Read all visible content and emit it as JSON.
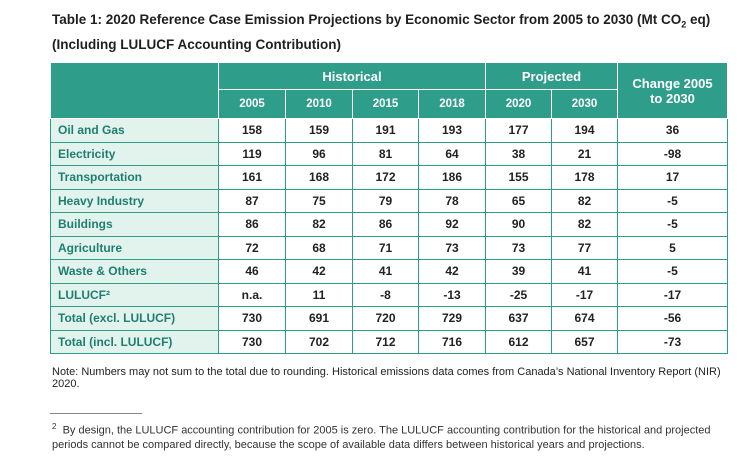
{
  "title": {
    "main": "Table 1: 2020 Reference Case Emission Projections by Economic Sector from 2005 to 2030 (Mt CO",
    "subscript": "2",
    "after": " eq)",
    "line2": "(Including LULUCF Accounting Contribution)"
  },
  "table": {
    "group_headers": [
      "Historical",
      "Projected",
      "Change 2005 to 2030"
    ],
    "years": [
      "2005",
      "2010",
      "2015",
      "2018",
      "2020",
      "2030"
    ],
    "rows": [
      [
        "Oil and Gas",
        "158",
        "159",
        "191",
        "193",
        "177",
        "194",
        "36"
      ],
      [
        "Electricity",
        "119",
        "96",
        "81",
        "64",
        "38",
        "21",
        "-98"
      ],
      [
        "Transportation",
        "161",
        "168",
        "172",
        "186",
        "155",
        "178",
        "17"
      ],
      [
        "Heavy Industry",
        "87",
        "75",
        "79",
        "78",
        "65",
        "82",
        "-5"
      ],
      [
        "Buildings",
        "86",
        "82",
        "86",
        "92",
        "90",
        "82",
        "-5"
      ],
      [
        "Agriculture",
        "72",
        "68",
        "71",
        "73",
        "73",
        "77",
        "5"
      ],
      [
        "Waste & Others",
        "46",
        "42",
        "41",
        "42",
        "39",
        "41",
        "-5"
      ],
      [
        "LULUCF²",
        "n.a.",
        "11",
        "-8",
        "-13",
        "-25",
        "-17",
        "-17"
      ],
      [
        "Total (excl. LULUCF)",
        "730",
        "691",
        "720",
        "729",
        "637",
        "674",
        "-56"
      ],
      [
        "Total (incl. LULUCF)",
        "730",
        "702",
        "712",
        "716",
        "612",
        "657",
        "-73"
      ]
    ]
  },
  "note": "Note: Numbers may not sum to the total due to rounding. Historical emissions data comes from Canada’s National Inventory Report (NIR) 2020.",
  "footnote": {
    "marker": "2",
    "text": "By design, the LULUCF accounting contribution for 2005 is zero. The LULUCF accounting contribution for the historical and projected periods cannot be compared directly, because the scope of available data differs between historical years and projections."
  }
}
